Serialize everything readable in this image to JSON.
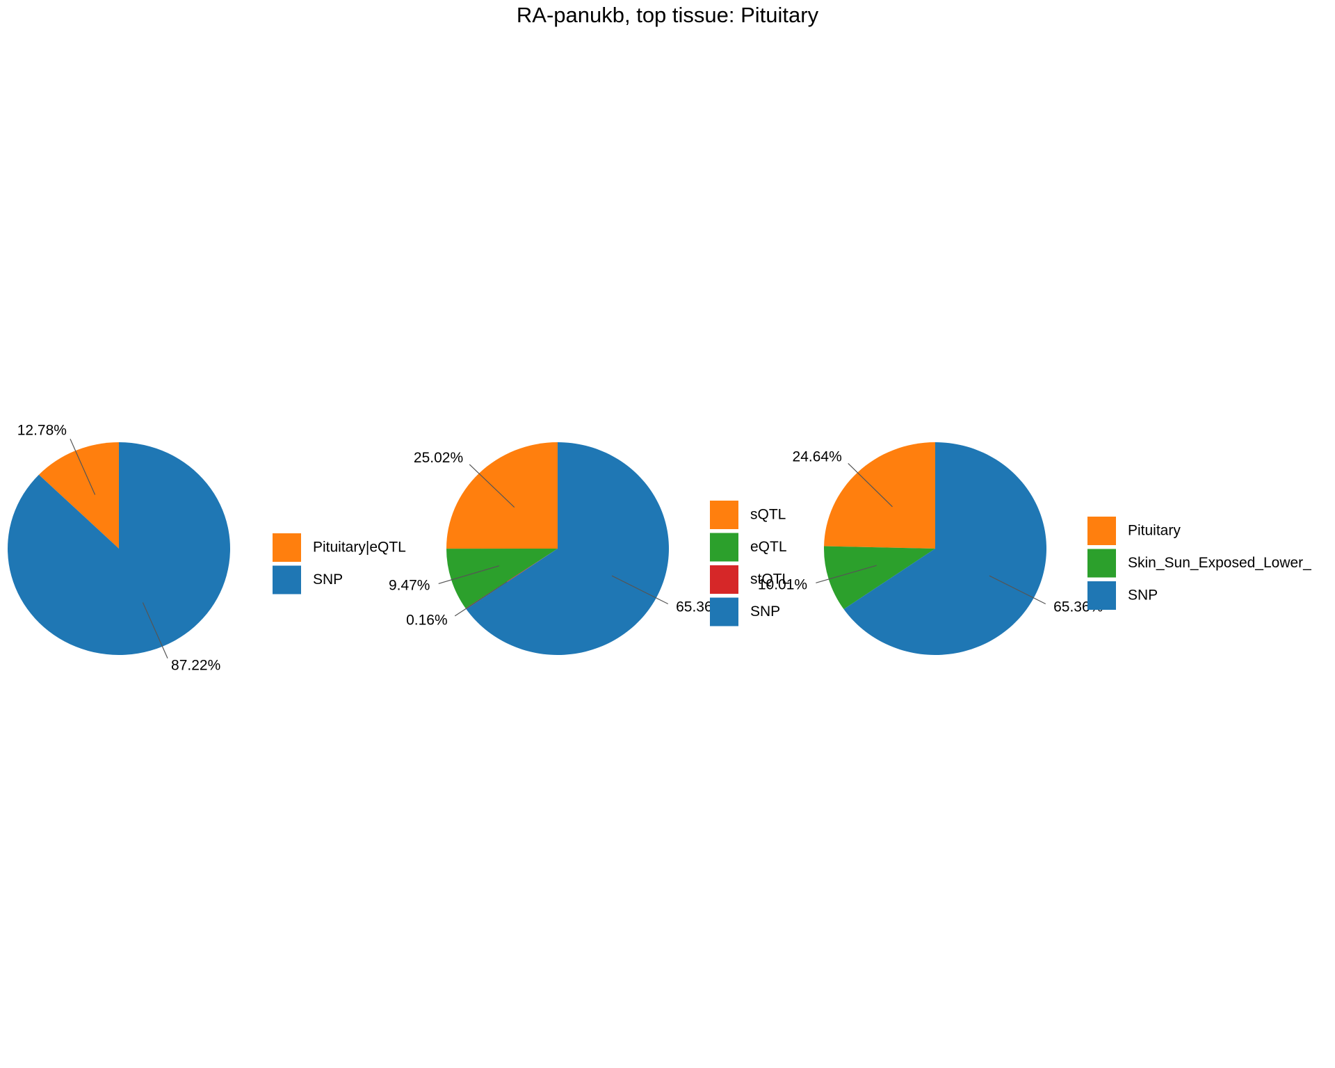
{
  "title": "RA-panukb, top tissue: Pituitary",
  "chart_data": [
    {
      "type": "pie",
      "categories": [
        "Pituitary|eQTL",
        "SNP"
      ],
      "values": [
        12.78,
        87.22
      ],
      "value_labels": [
        "12.78%",
        "87.22%"
      ],
      "colors": [
        "#ff7f0e",
        "#1f77b4"
      ]
    },
    {
      "type": "pie",
      "categories": [
        "sQTL",
        "eQTL",
        "stQTL",
        "SNP"
      ],
      "values": [
        25.02,
        9.47,
        0.16,
        65.36
      ],
      "value_labels": [
        "25.02%",
        "9.47%",
        "0.16%",
        "65.36%"
      ],
      "colors": [
        "#ff7f0e",
        "#2ca02c",
        "#d62728",
        "#1f77b4"
      ]
    },
    {
      "type": "pie",
      "categories": [
        "Pituitary",
        "Skin_Sun_Exposed_Lower_",
        "SNP"
      ],
      "values": [
        24.64,
        10.01,
        65.36
      ],
      "value_labels": [
        "24.64%",
        "10.01%",
        "65.36%"
      ],
      "colors": [
        "#ff7f0e",
        "#2ca02c",
        "#1f77b4"
      ]
    }
  ]
}
